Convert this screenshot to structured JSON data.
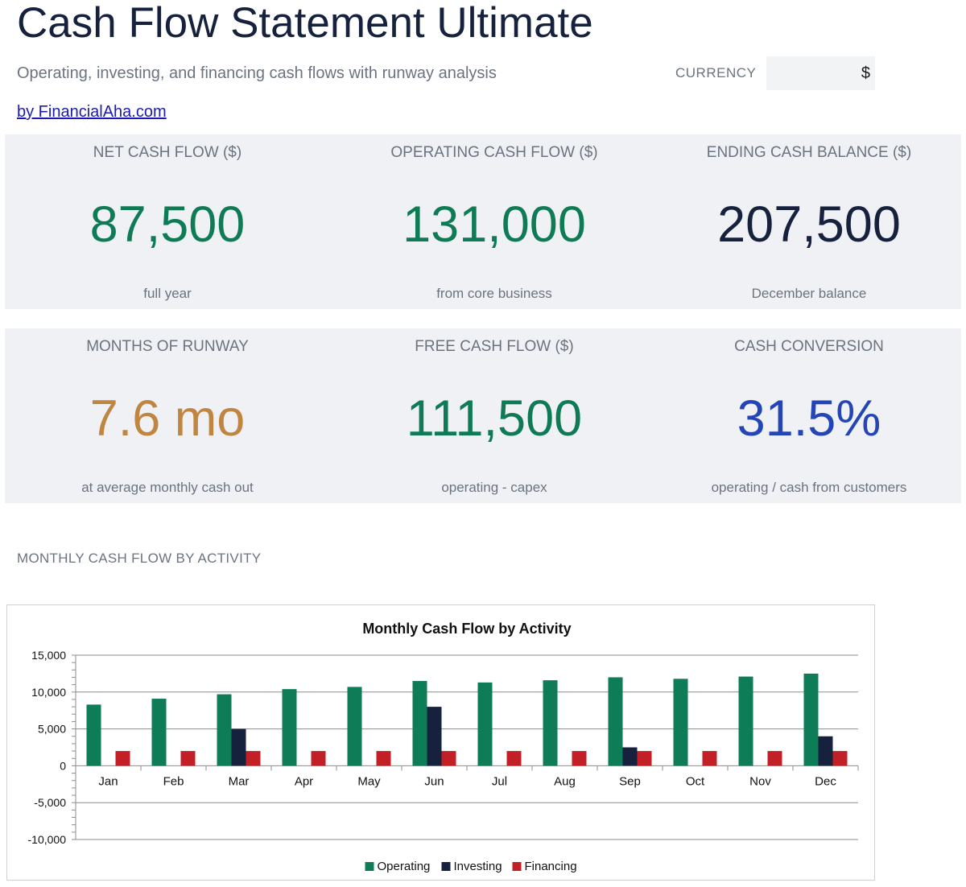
{
  "header": {
    "title": "Cash Flow Statement Ultimate",
    "subtitle": "Operating, investing, and financing cash flows with runway analysis",
    "byline": "by FinancialAha.com"
  },
  "currency": {
    "label": "CURRENCY",
    "value": "$"
  },
  "kpis": [
    {
      "label": "NET CASH FLOW ($)",
      "value": "87,500",
      "note": "full year",
      "color": "#0f7b55"
    },
    {
      "label": "OPERATING CASH FLOW ($)",
      "value": "131,000",
      "note": "from core business",
      "color": "#0f7b55"
    },
    {
      "label": "ENDING CASH BALANCE ($)",
      "value": "207,500",
      "note": "December balance",
      "color": "#16213e"
    },
    {
      "label": "MONTHS OF RUNWAY",
      "value": "7.6 mo",
      "note": "at average monthly cash out",
      "color": "#c08641"
    },
    {
      "label": "FREE CASH FLOW ($)",
      "value": "111,500",
      "note": "operating - capex",
      "color": "#0f7b55"
    },
    {
      "label": "CASH CONVERSION",
      "value": "31.5%",
      "note": "operating / cash from customers",
      "color": "#2345b5"
    }
  ],
  "section": {
    "chart_heading": "MONTHLY CASH FLOW BY ACTIVITY"
  },
  "chart_data": {
    "type": "bar",
    "title": "Monthly Cash Flow by Activity",
    "xlabel": "",
    "ylabel": "",
    "categories": [
      "Jan",
      "Feb",
      "Mar",
      "Apr",
      "May",
      "Jun",
      "Jul",
      "Aug",
      "Sep",
      "Oct",
      "Nov",
      "Dec"
    ],
    "series": [
      {
        "name": "Operating",
        "color": "#0e7d57",
        "values": [
          8300,
          9100,
          9700,
          10400,
          10700,
          11500,
          11300,
          11600,
          12000,
          11800,
          12100,
          12500
        ]
      },
      {
        "name": "Investing",
        "color": "#16213e",
        "values": [
          0,
          0,
          5000,
          0,
          0,
          8000,
          0,
          0,
          2500,
          0,
          0,
          4000
        ]
      },
      {
        "name": "Financing",
        "color": "#c21f26",
        "values": [
          2000,
          2000,
          2000,
          2000,
          2000,
          2000,
          2000,
          2000,
          2000,
          2000,
          2000,
          2000
        ]
      }
    ],
    "ylim": [
      -10000,
      15000
    ],
    "yticks": [
      15000,
      10000,
      5000,
      0,
      -5000,
      -10000
    ],
    "ytick_labels": [
      "15,000",
      "10,000",
      "5,000",
      "0",
      "-5,000",
      "-10,000"
    ],
    "grid": true,
    "legend": "bottom"
  }
}
